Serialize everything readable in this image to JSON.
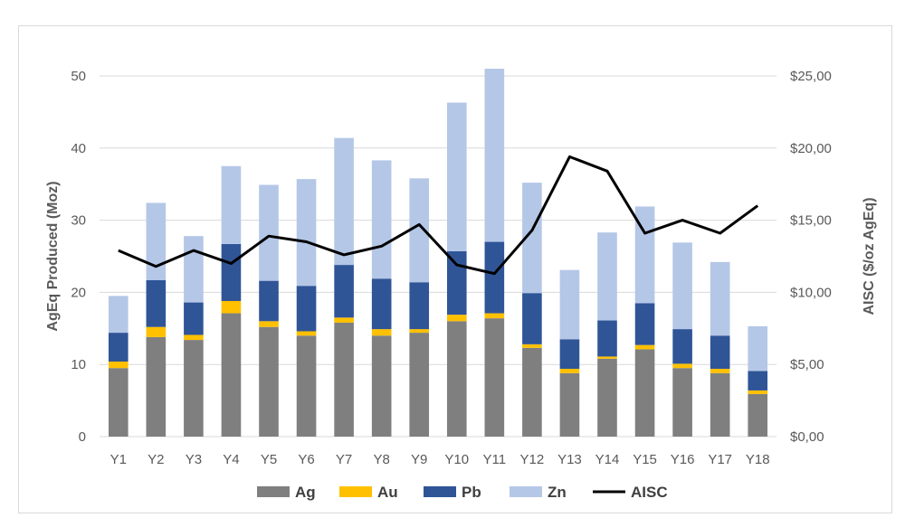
{
  "chart_data": {
    "type": "bar",
    "stacked": true,
    "categories": [
      "Y1",
      "Y2",
      "Y3",
      "Y4",
      "Y5",
      "Y6",
      "Y7",
      "Y8",
      "Y9",
      "Y10",
      "Y11",
      "Y12",
      "Y13",
      "Y14",
      "Y15",
      "Y16",
      "Y17",
      "Y18"
    ],
    "series": [
      {
        "name": "Ag",
        "color": "#7f7f7f",
        "values": [
          9.5,
          13.8,
          13.4,
          17.1,
          15.2,
          14.0,
          15.8,
          14.0,
          14.4,
          16.0,
          16.4,
          12.3,
          8.8,
          10.8,
          12.1,
          9.5,
          8.8,
          5.9
        ]
      },
      {
        "name": "Au",
        "color": "#ffc000",
        "values": [
          0.9,
          1.4,
          0.7,
          1.7,
          0.8,
          0.6,
          0.7,
          0.9,
          0.5,
          0.9,
          0.7,
          0.5,
          0.6,
          0.3,
          0.6,
          0.6,
          0.6,
          0.5
        ]
      },
      {
        "name": "Pb",
        "color": "#2f5597",
        "values": [
          4.0,
          6.5,
          4.5,
          7.9,
          5.6,
          6.3,
          7.3,
          7.0,
          6.5,
          8.8,
          9.9,
          7.1,
          4.1,
          5.0,
          5.8,
          4.8,
          4.6,
          2.7
        ]
      },
      {
        "name": "Zn",
        "color": "#b4c7e7",
        "values": [
          5.1,
          10.7,
          9.2,
          10.8,
          13.3,
          14.8,
          17.6,
          16.4,
          14.4,
          20.6,
          24.0,
          15.3,
          9.6,
          12.2,
          13.4,
          12.0,
          10.2,
          6.2
        ]
      }
    ],
    "line_series": {
      "name": "AISC",
      "color": "#000000",
      "axis": "right",
      "values": [
        12.9,
        11.8,
        12.9,
        12.0,
        13.9,
        13.5,
        12.6,
        13.2,
        14.7,
        11.9,
        11.3,
        14.3,
        19.4,
        18.4,
        14.1,
        15.0,
        14.1,
        16.0
      ]
    },
    "ylabel": "AgEq Produced (Moz)",
    "ylim": [
      0,
      50
    ],
    "yticks": [
      0,
      10,
      20,
      30,
      40,
      50
    ],
    "y2label": "AISC ($/oz AgEq)",
    "y2lim": [
      0,
      25
    ],
    "y2ticks": [
      "$0,00",
      "$5,00",
      "$10,00",
      "$15,00",
      "$20,00",
      "$25,00"
    ],
    "legend_position": "bottom",
    "grid": true
  }
}
